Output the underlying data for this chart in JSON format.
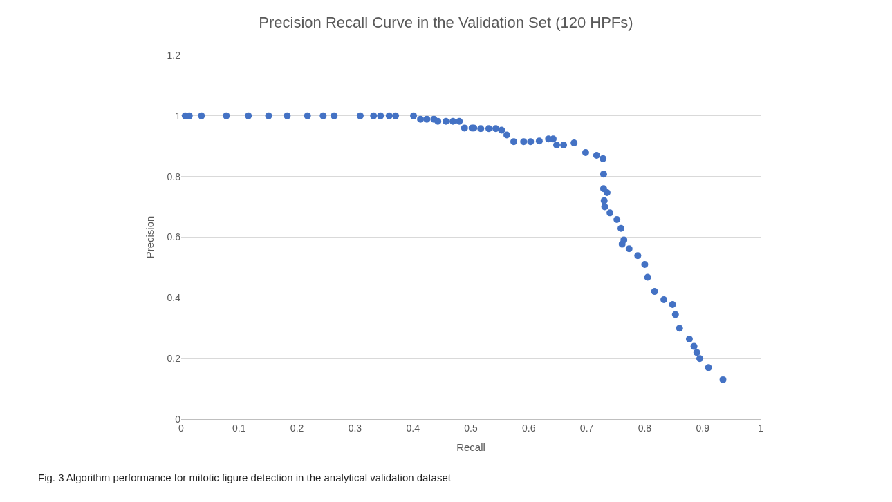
{
  "chart_data": {
    "type": "scatter",
    "title": "Precision Recall Curve in the Validation Set (120 HPFs)",
    "xlabel": "Recall",
    "ylabel": "Precision",
    "annotations": [
      "Fig. 3 Algorithm performance for mitotic figure detection in the analytical validation dataset"
    ],
    "xlim": [
      0,
      1
    ],
    "xticks": [
      0,
      0.1,
      0.2,
      0.3,
      0.4,
      0.5,
      0.6,
      0.7,
      0.8,
      0.9,
      1
    ],
    "ylim": [
      0,
      1.2
    ],
    "yticks": [
      0,
      0.2,
      0.4,
      0.6,
      0.8,
      1,
      1.2
    ],
    "grid": "y",
    "marker": "circle",
    "series": [
      {
        "color": "#4472c4",
        "x": [
          0.007,
          0.014,
          0.035,
          0.078,
          0.116,
          0.151,
          0.183,
          0.218,
          0.245,
          0.264,
          0.309,
          0.332,
          0.344,
          0.359,
          0.37,
          0.401,
          0.413,
          0.424,
          0.436,
          0.443,
          0.457,
          0.469,
          0.48,
          0.489,
          0.502,
          0.505,
          0.517,
          0.531,
          0.543,
          0.553,
          0.562,
          0.574,
          0.591,
          0.603,
          0.618,
          0.634,
          0.642,
          0.648,
          0.66,
          0.678,
          0.698,
          0.717,
          0.728,
          0.729,
          0.729,
          0.73,
          0.731,
          0.735,
          0.74,
          0.752,
          0.759,
          0.761,
          0.764,
          0.773,
          0.788,
          0.8,
          0.805,
          0.817,
          0.833,
          0.848,
          0.853,
          0.86,
          0.877,
          0.885,
          0.89,
          0.895,
          0.91,
          0.935
        ],
        "values": [
          1,
          1,
          1,
          1,
          1,
          1,
          1,
          1,
          1,
          1,
          1,
          1,
          1,
          1,
          1,
          1,
          0.989,
          0.989,
          0.989,
          0.982,
          0.982,
          0.982,
          0.982,
          0.96,
          0.96,
          0.96,
          0.958,
          0.958,
          0.958,
          0.953,
          0.937,
          0.915,
          0.915,
          0.915,
          0.917,
          0.924,
          0.924,
          0.904,
          0.904,
          0.911,
          0.879,
          0.87,
          0.859,
          0.808,
          0.76,
          0.72,
          0.7,
          0.747,
          0.68,
          0.658,
          0.629,
          0.577,
          0.591,
          0.562,
          0.539,
          0.51,
          0.468,
          0.421,
          0.394,
          0.378,
          0.345,
          0.3,
          0.264,
          0.24,
          0.22,
          0.2,
          0.17,
          0.13
        ]
      }
    ]
  }
}
